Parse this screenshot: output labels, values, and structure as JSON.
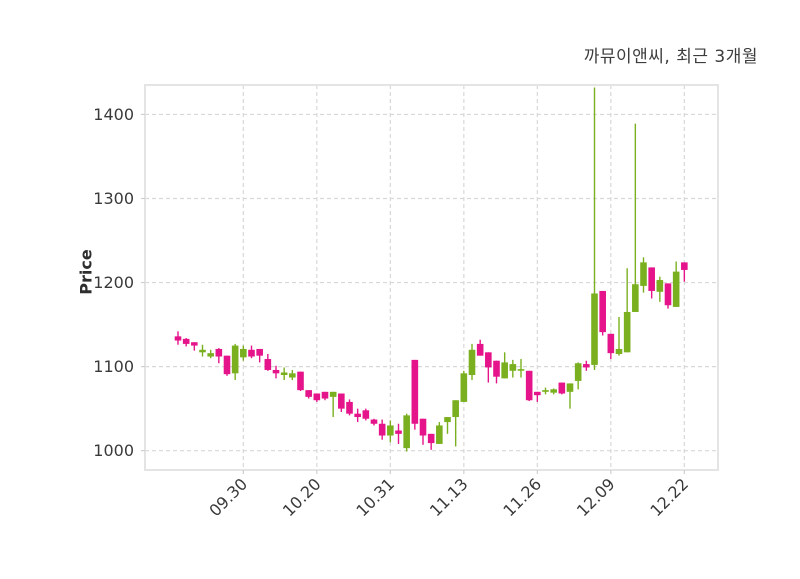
{
  "chart_data": {
    "type": "candlestick",
    "title": "까뮤이앤씨, 최근 3개월",
    "ylabel": "Price",
    "yticks": [
      1000,
      1100,
      1200,
      1300,
      1400
    ],
    "ylim": [
      977,
      1435
    ],
    "xticklabels": [
      "09.30",
      "10.20",
      "10.31",
      "11.13",
      "11.26",
      "12.09",
      "12.22"
    ],
    "xtick_candle_indices": [
      8,
      17,
      26,
      35,
      44,
      53,
      62
    ],
    "grid": true,
    "legend": "none",
    "up_color": "#7ab020",
    "down_color": "#e5148a",
    "grid_color": "#d8d8d8",
    "frame_color": "#e4e4e4",
    "tick_label_color": "#3a3a3a",
    "candles_format": "[open, high, low, close]",
    "candles": [
      [
        1136,
        1142,
        1126,
        1131
      ],
      [
        1133,
        1134,
        1124,
        1127
      ],
      [
        1129,
        1129,
        1119,
        1125
      ],
      [
        1117,
        1126,
        1112,
        1120
      ],
      [
        1112,
        1120,
        1110,
        1116
      ],
      [
        1121,
        1122,
        1104,
        1112
      ],
      [
        1113,
        1113,
        1089,
        1091
      ],
      [
        1092,
        1127,
        1084,
        1125
      ],
      [
        1111,
        1125,
        1107,
        1121
      ],
      [
        1120,
        1125,
        1110,
        1112
      ],
      [
        1121,
        1121,
        1105,
        1113
      ],
      [
        1109,
        1115,
        1095,
        1096
      ],
      [
        1096,
        1101,
        1086,
        1092
      ],
      [
        1090,
        1099,
        1084,
        1093
      ],
      [
        1087,
        1096,
        1084,
        1092
      ],
      [
        1094,
        1094,
        1071,
        1072
      ],
      [
        1072,
        1072,
        1062,
        1064
      ],
      [
        1068,
        1068,
        1058,
        1060
      ],
      [
        1070,
        1070,
        1060,
        1062
      ],
      [
        1064,
        1070,
        1040,
        1070
      ],
      [
        1068,
        1068,
        1046,
        1050
      ],
      [
        1058,
        1061,
        1042,
        1044
      ],
      [
        1044,
        1050,
        1034,
        1040
      ],
      [
        1048,
        1050,
        1036,
        1038
      ],
      [
        1037,
        1038,
        1030,
        1032
      ],
      [
        1032,
        1037,
        1013,
        1018
      ],
      [
        1018,
        1036,
        1010,
        1030
      ],
      [
        1024,
        1032,
        1008,
        1020
      ],
      [
        1003,
        1044,
        999,
        1042
      ],
      [
        1108,
        1108,
        1025,
        1032
      ],
      [
        1038,
        1038,
        1007,
        1018
      ],
      [
        1020,
        1020,
        1001,
        1009
      ],
      [
        1008,
        1034,
        1008,
        1030
      ],
      [
        1034,
        1040,
        1020,
        1040
      ],
      [
        1040,
        1060,
        1005,
        1060
      ],
      [
        1058,
        1095,
        1058,
        1092
      ],
      [
        1090,
        1127,
        1084,
        1120
      ],
      [
        1127,
        1132,
        1113,
        1113
      ],
      [
        1117,
        1117,
        1081,
        1099
      ],
      [
        1107,
        1107,
        1080,
        1088
      ],
      [
        1086,
        1117,
        1086,
        1105
      ],
      [
        1095,
        1108,
        1087,
        1103
      ],
      [
        1096,
        1109,
        1087,
        1097
      ],
      [
        1095,
        1095,
        1059,
        1060
      ],
      [
        1070,
        1070,
        1058,
        1066
      ],
      [
        1070,
        1075,
        1067,
        1072
      ],
      [
        1069,
        1074,
        1067,
        1073
      ],
      [
        1081,
        1081,
        1067,
        1068
      ],
      [
        1070,
        1080,
        1050,
        1080
      ],
      [
        1083,
        1105,
        1073,
        1104
      ],
      [
        1103,
        1107,
        1095,
        1099
      ],
      [
        1102,
        1432,
        1096,
        1187
      ],
      [
        1190,
        1190,
        1137,
        1141
      ],
      [
        1139,
        1139,
        1109,
        1116
      ],
      [
        1115,
        1159,
        1113,
        1121
      ],
      [
        1117,
        1217,
        1117,
        1165
      ],
      [
        1165,
        1389,
        1165,
        1198
      ],
      [
        1196,
        1230,
        1188,
        1224
      ],
      [
        1218,
        1218,
        1181,
        1190
      ],
      [
        1189,
        1207,
        1177,
        1203
      ],
      [
        1199,
        1199,
        1169,
        1173
      ],
      [
        1171,
        1225,
        1171,
        1213
      ],
      [
        1224,
        1224,
        1201,
        1215
      ]
    ]
  }
}
